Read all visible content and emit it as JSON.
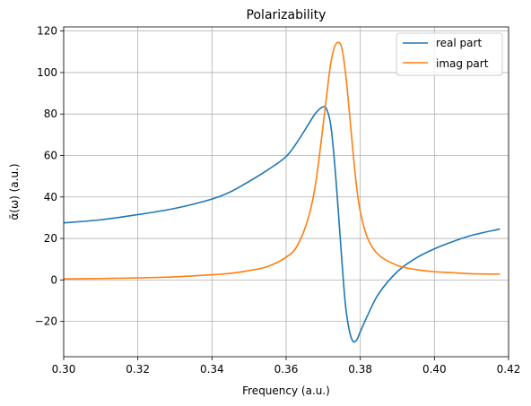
{
  "chart_data": {
    "type": "line",
    "title": "Polarizability",
    "xlabel": "Frequency (a.u.)",
    "ylabel": "ᾱ(ω) (a.u.)",
    "xlim": [
      0.3,
      0.42
    ],
    "ylim": [
      -37,
      122
    ],
    "xticks": [
      0.3,
      0.32,
      0.34,
      0.36,
      0.38,
      0.4,
      0.42
    ],
    "xtick_labels": [
      "0.30",
      "0.32",
      "0.34",
      "0.36",
      "0.38",
      "0.40",
      "0.42"
    ],
    "yticks": [
      -20,
      0,
      20,
      40,
      60,
      80,
      100,
      120
    ],
    "ytick_labels": [
      "−20",
      "0",
      "20",
      "40",
      "60",
      "80",
      "100",
      "120"
    ],
    "grid": true,
    "legend_position": "top-right",
    "series": [
      {
        "name": "real part",
        "color": "#1f77b4",
        "x": [
          0.3,
          0.31,
          0.32,
          0.33,
          0.34,
          0.345,
          0.35,
          0.355,
          0.36,
          0.363,
          0.366,
          0.368,
          0.37,
          0.371,
          0.372,
          0.373,
          0.374,
          0.375,
          0.376,
          0.377,
          0.378,
          0.379,
          0.38,
          0.382,
          0.385,
          0.39,
          0.395,
          0.4,
          0.405,
          0.41,
          0.4175
        ],
        "y": [
          27.5,
          29.0,
          31.5,
          34.5,
          39.0,
          42.5,
          47.5,
          53.0,
          59.5,
          66.5,
          75.0,
          80.5,
          83.5,
          82.0,
          75.0,
          58.0,
          35.0,
          10.0,
          -12.0,
          -24.0,
          -29.5,
          -29.0,
          -25.0,
          -17.0,
          -6.5,
          4.0,
          10.5,
          15.0,
          18.5,
          21.5,
          24.5
        ]
      },
      {
        "name": "imag part",
        "color": "#ff7f0e",
        "x": [
          0.3,
          0.31,
          0.32,
          0.33,
          0.34,
          0.345,
          0.35,
          0.355,
          0.36,
          0.363,
          0.366,
          0.368,
          0.37,
          0.371,
          0.372,
          0.373,
          0.374,
          0.375,
          0.376,
          0.377,
          0.378,
          0.379,
          0.38,
          0.382,
          0.385,
          0.39,
          0.395,
          0.4,
          0.405,
          0.41,
          0.4175
        ],
        "y": [
          0.5,
          0.7,
          1.0,
          1.5,
          2.5,
          3.2,
          4.5,
          6.5,
          11.0,
          16.5,
          30.0,
          47.0,
          75.0,
          90.0,
          104.0,
          112.0,
          114.5,
          112.0,
          100.0,
          82.0,
          62.5,
          45.0,
          33.0,
          20.0,
          12.0,
          7.0,
          5.0,
          4.0,
          3.5,
          3.0,
          2.8
        ]
      }
    ]
  }
}
